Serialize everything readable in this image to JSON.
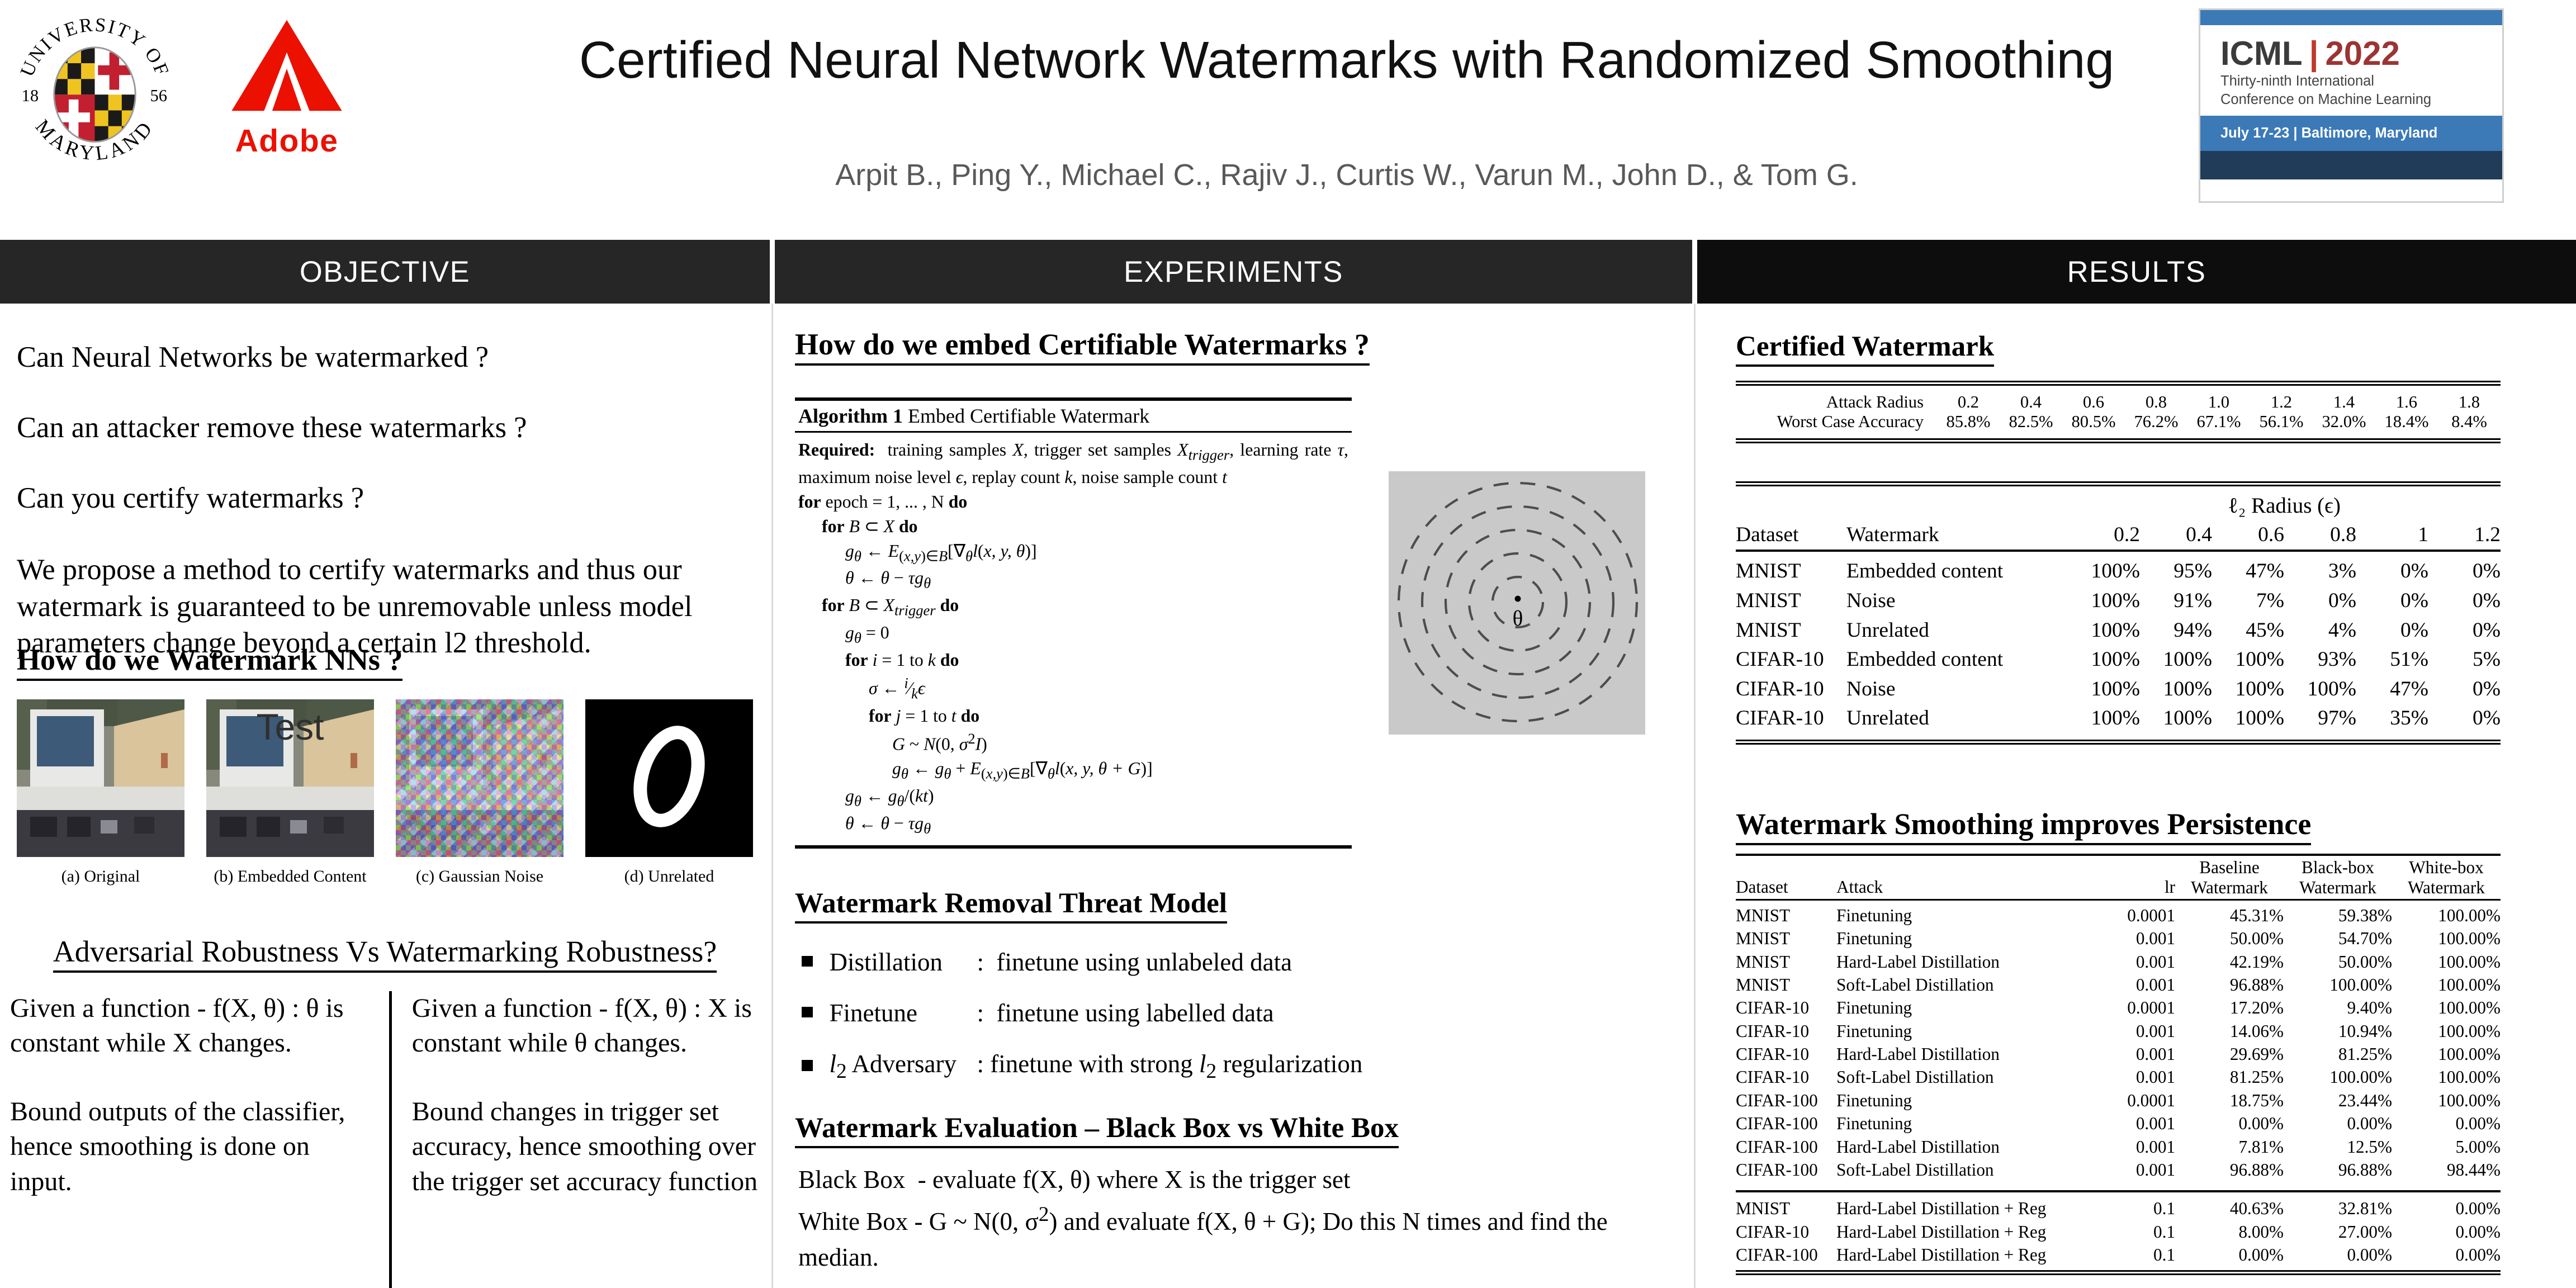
{
  "header": {
    "title": "Certified Neural Network Watermarks with Randomized Smoothing",
    "authors": "Arpit B., Ping Y., Michael C., Rajiv J., Curtis W., Varun M.,  John D., & Tom G.",
    "umd": {
      "arc_top": "UNIVERSITY OF",
      "arc_bottom": "MARYLAND",
      "year_left": "18",
      "year_right": "56"
    },
    "adobe": {
      "label": "Adobe"
    },
    "icml": {
      "name": "ICML",
      "sep": "|",
      "year": "2022",
      "line1": "Thirty-ninth International",
      "line2": "Conference on Machine Learning",
      "band": "July 17-23  |  Baltimore, Maryland"
    }
  },
  "bars": {
    "objective": "OBJECTIVE",
    "experiments": "EXPERIMENTS",
    "results": "RESULTS"
  },
  "objective": {
    "questions": [
      "Can Neural Networks be watermarked ?",
      "Can an attacker remove these watermarks ?",
      "Can you certify watermarks ?"
    ],
    "proposal": "We propose a method to certify watermarks and thus our watermark is guaranteed to be unremovable unless model parameters change beyond a certain l2 threshold.",
    "watermark_heading": "How do we Watermark NNs ?",
    "figure": {
      "overlay_text": "Test",
      "captions": [
        "(a) Original",
        "(b) Embedded Content",
        "(c) Gaussian Noise",
        "(d) Unrelated"
      ]
    },
    "comparison": {
      "heading": "Adversarial Robustness Vs Watermarking Robustness?",
      "left": [
        "Given a function - f(X, θ) : θ is constant while X changes.",
        "Bound outputs of the classifier, hence smoothing is done on input."
      ],
      "right": [
        "Given a function - f(X, θ) : X is constant while θ changes.",
        "Bound changes in trigger set accuracy, hence smoothing over the trigger set accuracy function"
      ]
    }
  },
  "experiments": {
    "embed_heading": "How do we embed Certifiable Watermarks ?",
    "algorithm": {
      "title_bold": "Algorithm 1",
      "title_rest": " Embed Certifiable Watermark",
      "lines": [
        {
          "cls": "ln i0 just",
          "html": "<b>Required:</b>&nbsp; training samples <i>X</i>, trigger set samples <i>X<sub>trigger</sub></i>, learning rate <i>τ</i>, maximum noise level <i>ϵ</i>, replay count <i>k</i>, noise sample count <i>t</i>"
        },
        {
          "cls": "ln i0",
          "html": "<b>for</b> epoch = 1, ... , N <b>do</b>"
        },
        {
          "cls": "ln i1",
          "html": "<b>for</b> <i>B</i> ⊂ <i>X</i> <b>do</b>"
        },
        {
          "cls": "ln i2",
          "html": "<i>g<sub>θ</sub></i> ← <i>E</i><sub>(<i>x,y</i>)∈<i>B</i></sub>[∇<sub><i>θ</i></sub><i>l</i>(<i>x, y, θ</i>)]"
        },
        {
          "cls": "ln i2",
          "html": "<i>θ</i> ← <i>θ</i> − <i>τg<sub>θ</sub></i>"
        },
        {
          "cls": "ln i1",
          "html": "<b>for</b> <i>B</i> ⊂ <i>X<sub>trigger</sub></i> <b>do</b>"
        },
        {
          "cls": "ln i2",
          "html": "<i>g<sub>θ</sub></i> = 0"
        },
        {
          "cls": "ln i2",
          "html": "<b>for</b> <i>i</i> = 1 to <i>k</i> <b>do</b>"
        },
        {
          "cls": "ln i3",
          "html": "<i>σ</i> ← <i><sup>i</sup></i>⁄<i><sub>k</sub></i><i>ϵ</i>"
        },
        {
          "cls": "ln i3",
          "html": "<b>for</b> <i>j</i> = 1 to <i>t</i> <b>do</b>"
        },
        {
          "cls": "ln i4",
          "html": "<i>G</i> ~ <i>N</i>(0, <i>σ</i><sup>2</sup><i>I</i>)"
        },
        {
          "cls": "ln i4",
          "html": "<i>g<sub>θ</sub></i> ← <i>g<sub>θ</sub></i> + <i>E</i><sub>(<i>x,y</i>)∈<i>B</i></sub>[∇<sub><i>θ</i></sub><i>l</i>(<i>x, y, θ + G</i>)]"
        },
        {
          "cls": "ln i2",
          "html": "<i>g<sub>θ</sub></i> ← <i>g<sub>θ</sub></i>/(<i>kt</i>)"
        },
        {
          "cls": "ln i2",
          "html": "<i>θ</i> ← <i>θ</i> − <i>τg<sub>θ</sub></i>"
        }
      ]
    },
    "diagram": {
      "center_label": "θ"
    },
    "threat": {
      "heading": "Watermark Removal Threat Model",
      "bullets": [
        {
          "term": "Distillation",
          "def": ":&nbsp; finetune using unlabeled data"
        },
        {
          "term": "Finetune",
          "def": ":&nbsp; finetune using labelled data"
        },
        {
          "term": "<i>l</i><sub>2</sub> Adversary",
          "def": ": finetune with strong <i>l</i><sub>2</sub> regularization"
        }
      ]
    },
    "evaluation": {
      "heading": "Watermark Evaluation – Black Box vs White Box",
      "lines": [
        "Black Box&nbsp; - evaluate f(X, θ) where X is the trigger set",
        "White Box - G ~ N(0, σ<sup>2</sup>) and evaluate f(X, θ + G); Do this N times and find the median."
      ]
    }
  },
  "results": {
    "certified_heading": "Certified Watermark",
    "tableA": {
      "rows": [
        [
          "Attack Radius",
          "0.2",
          "0.4",
          "0.6",
          "0.8",
          "1.0",
          "1.2",
          "1.4",
          "1.6",
          "1.8"
        ],
        [
          "Worst Case Accuracy",
          "85.8%",
          "82.5%",
          "80.5%",
          "76.2%",
          "67.1%",
          "56.1%",
          "32.0%",
          "18.4%",
          "8.4%"
        ]
      ]
    },
    "tableB": {
      "span_header": "ℓ₂ Radius (ϵ)",
      "col_headers": [
        "Dataset",
        "Watermark",
        "0.2",
        "0.4",
        "0.6",
        "0.8",
        "1",
        "1.2"
      ],
      "rows": [
        [
          "MNIST",
          "Embedded content",
          "100%",
          "95%",
          "47%",
          "3%",
          "0%",
          "0%"
        ],
        [
          "MNIST",
          "Noise",
          "100%",
          "91%",
          "7%",
          "0%",
          "0%",
          "0%"
        ],
        [
          "MNIST",
          "Unrelated",
          "100%",
          "94%",
          "45%",
          "4%",
          "0%",
          "0%"
        ],
        [
          "CIFAR-10",
          "Embedded content",
          "100%",
          "100%",
          "100%",
          "93%",
          "51%",
          "5%"
        ],
        [
          "CIFAR-10",
          "Noise",
          "100%",
          "100%",
          "100%",
          "100%",
          "47%",
          "0%"
        ],
        [
          "CIFAR-10",
          "Unrelated",
          "100%",
          "100%",
          "100%",
          "97%",
          "35%",
          "0%"
        ]
      ]
    },
    "persistence_heading": "Watermark Smoothing improves Persistence",
    "tableC": {
      "col_headers": [
        "Dataset",
        "Attack",
        "lr",
        "Baseline\nWatermark",
        "Black-box\nWatermark",
        "White-box\nWatermark"
      ],
      "rows": [
        [
          "MNIST",
          "Finetuning",
          "0.0001",
          "45.31%",
          "59.38%",
          "100.00%"
        ],
        [
          "MNIST",
          "Finetuning",
          "0.001",
          "50.00%",
          "54.70%",
          "100.00%"
        ],
        [
          "MNIST",
          "Hard-Label Distillation",
          "0.001",
          "42.19%",
          "50.00%",
          "100.00%"
        ],
        [
          "MNIST",
          "Soft-Label Distillation",
          "0.001",
          "96.88%",
          "100.00%",
          "100.00%"
        ],
        [
          "CIFAR-10",
          "Finetuning",
          "0.0001",
          "17.20%",
          "9.40%",
          "100.00%"
        ],
        [
          "CIFAR-10",
          "Finetuning",
          "0.001",
          "14.06%",
          "10.94%",
          "100.00%"
        ],
        [
          "CIFAR-10",
          "Hard-Label Distillation",
          "0.001",
          "29.69%",
          "81.25%",
          "100.00%"
        ],
        [
          "CIFAR-10",
          "Soft-Label Distillation",
          "0.001",
          "81.25%",
          "100.00%",
          "100.00%"
        ],
        [
          "CIFAR-100",
          "Finetuning",
          "0.0001",
          "18.75%",
          "23.44%",
          "100.00%"
        ],
        [
          "CIFAR-100",
          "Finetuning",
          "0.001",
          "0.00%",
          "0.00%",
          "0.00%"
        ],
        [
          "CIFAR-100",
          "Hard-Label Distillation",
          "0.001",
          "7.81%",
          "12.5%",
          "5.00%"
        ],
        [
          "CIFAR-100",
          "Soft-Label Distillation",
          "0.001",
          "96.88%",
          "96.88%",
          "98.44%"
        ]
      ],
      "rows2": [
        [
          "MNIST",
          "Hard-Label Distillation + Reg",
          "0.1",
          "40.63%",
          "32.81%",
          "0.00%"
        ],
        [
          "CIFAR-10",
          "Hard-Label Distillation + Reg",
          "0.1",
          "8.00%",
          "27.00%",
          "0.00%"
        ],
        [
          "CIFAR-100",
          "Hard-Label Distillation + Reg",
          "0.1",
          "0.00%",
          "0.00%",
          "0.00%"
        ]
      ]
    }
  },
  "colors": {
    "bar_dark": "#262626",
    "bar_black": "#0d0d0d",
    "icml_blue": "#3b79b7",
    "icml_navy": "#203c59",
    "adobe_red": "#eb1000",
    "icml_year_red": "#9c3434",
    "author_gray": "#595959",
    "diagram_gray": "#c9c9c9"
  }
}
